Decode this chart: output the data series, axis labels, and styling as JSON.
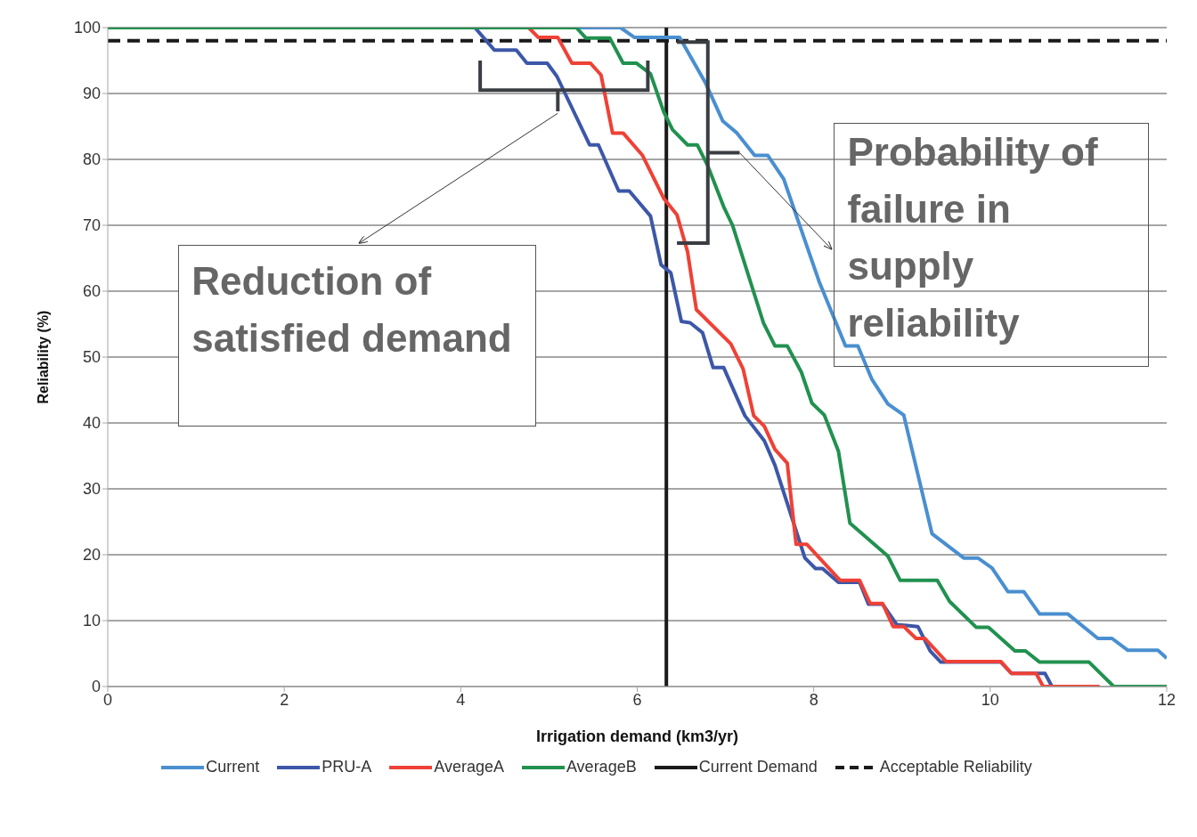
{
  "chart_data": {
    "type": "line",
    "xlabel": "Irrigation demand (km3/yr)",
    "ylabel": "Reliability (%)",
    "xlim": [
      0,
      12
    ],
    "xticks": [
      0,
      2,
      4,
      6,
      8,
      10,
      12
    ],
    "ylim": [
      0,
      100
    ],
    "yticks": [
      0,
      10,
      20,
      30,
      40,
      50,
      60,
      70,
      80,
      90,
      100
    ],
    "grid": "y",
    "legend": "bottom",
    "marker": "none",
    "line_style": "solid",
    "series": [
      {
        "name": "Current",
        "color": "#4a8fd0",
        "x": [
          0,
          5.81,
          5.97,
          6.48,
          6.77,
          6.97,
          7.13,
          7.33,
          7.48,
          7.66,
          8.06,
          8.36,
          8.5,
          8.66,
          8.84,
          9.02,
          9.34,
          9.7,
          9.86,
          10.02,
          10.2,
          10.38,
          10.56,
          10.88,
          11.22,
          11.38,
          11.56,
          11.9,
          12
        ],
        "values": [
          100,
          100,
          98.5,
          98.5,
          91.7,
          85.8,
          84,
          80.6,
          80.6,
          77,
          61.5,
          51.7,
          51.7,
          46.6,
          42.9,
          41.2,
          23.2,
          19.5,
          19.5,
          18,
          14.4,
          14.4,
          11,
          11,
          7.3,
          7.3,
          5.5,
          5.5,
          4.3
        ]
      },
      {
        "name": "PRU-A",
        "color": "#3d57a8",
        "x": [
          0,
          4.16,
          4.38,
          4.63,
          4.75,
          4.98,
          5.09,
          5.46,
          5.56,
          5.79,
          5.91,
          6.15,
          6.27,
          6.38,
          6.5,
          6.6,
          6.74,
          6.86,
          6.98,
          7.22,
          7.44,
          7.56,
          7.9,
          8.02,
          8.1,
          8.28,
          8.52,
          8.62,
          8.78,
          8.94,
          9.18,
          9.32,
          9.44,
          10.12,
          10.24,
          10.62,
          10.7
        ],
        "values": [
          100,
          100,
          96.6,
          96.6,
          94.6,
          94.6,
          92.6,
          82.2,
          82.2,
          75.2,
          75.2,
          71.4,
          64,
          62.8,
          55.4,
          55.2,
          53.7,
          48.4,
          48.4,
          41.1,
          37.3,
          33.6,
          19.5,
          17.9,
          17.9,
          15.8,
          15.8,
          12.5,
          12.5,
          9.4,
          9.1,
          5.4,
          3.7,
          3.7,
          2,
          2,
          0
        ]
      },
      {
        "name": "AverageA",
        "color": "#ef4136",
        "x": [
          0,
          4.77,
          4.88,
          5.1,
          5.26,
          5.47,
          5.59,
          5.72,
          5.84,
          6.06,
          6.3,
          6.45,
          6.57,
          6.67,
          7.06,
          7.2,
          7.32,
          7.44,
          7.56,
          7.7,
          7.8,
          7.92,
          8.3,
          8.52,
          8.64,
          8.78,
          8.9,
          9.02,
          9.16,
          9.26,
          9.5,
          10.12,
          10.24,
          10.52,
          10.6,
          11.24
        ],
        "values": [
          100,
          100,
          98.5,
          98.5,
          94.6,
          94.6,
          92.8,
          84,
          84,
          80.6,
          74.1,
          71.6,
          66,
          57.2,
          52,
          48.2,
          41.1,
          39.5,
          36,
          33.9,
          21.6,
          21.6,
          16.1,
          16.1,
          12.6,
          12.6,
          9.1,
          9.1,
          7.3,
          7.3,
          3.8,
          3.8,
          2,
          2,
          0,
          0
        ]
      },
      {
        "name": "AverageB",
        "color": "#21914f",
        "x": [
          0,
          5.31,
          5.42,
          5.69,
          5.84,
          5.99,
          6.15,
          6.3,
          6.4,
          6.57,
          6.68,
          6.8,
          6.98,
          7.08,
          7.43,
          7.56,
          7.7,
          7.86,
          7.98,
          8.12,
          8.28,
          8.41,
          8.84,
          8.98,
          9.4,
          9.54,
          9.84,
          9.98,
          10.28,
          10.4,
          10.56,
          11.12,
          11.4,
          12
        ],
        "values": [
          100,
          100,
          98.4,
          98.4,
          94.6,
          94.6,
          93,
          87.2,
          84.5,
          82.2,
          82.2,
          79,
          72.8,
          70,
          55.2,
          51.7,
          51.7,
          47.7,
          43,
          41.2,
          35.7,
          24.8,
          19.8,
          16.1,
          16.1,
          12.9,
          9,
          9,
          5.4,
          5.4,
          3.7,
          3.7,
          0,
          0
        ]
      }
    ],
    "ref_lines": [
      {
        "axis": "x",
        "value": 6.33,
        "label": "Current Demand",
        "color": "#1a1a1a",
        "line_style": "solid"
      },
      {
        "axis": "y",
        "value": 98,
        "label": "Acceptable Reliability",
        "color": "#1a1a1a",
        "line_style": "dashed"
      }
    ],
    "annotations": [
      "Reduction of satisfied demand",
      "Probability of failure in supply reliability"
    ]
  }
}
